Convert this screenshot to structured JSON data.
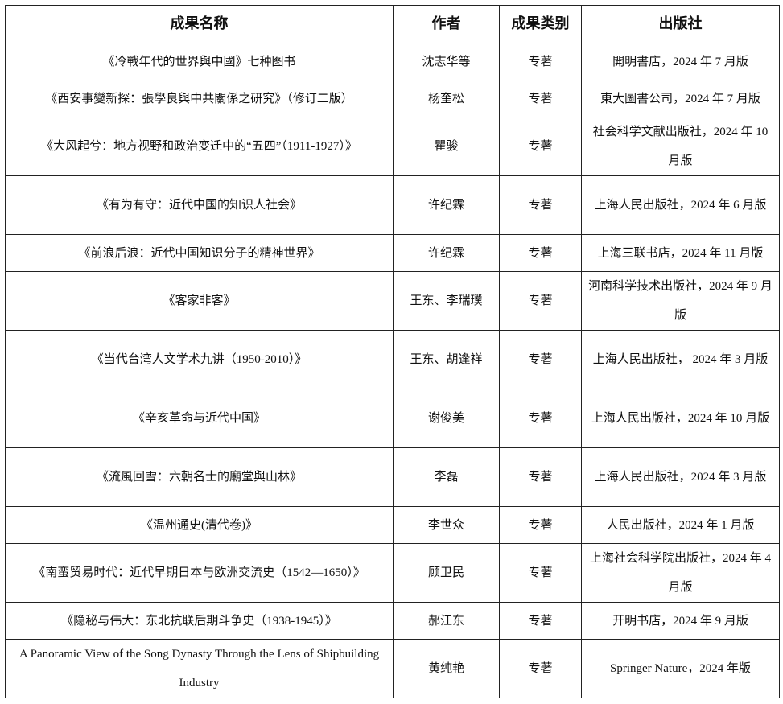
{
  "table": {
    "headers": [
      "成果名称",
      "作者",
      "成果类别",
      "出版社"
    ],
    "rows": [
      {
        "title": "《冷戰年代的世界與中國》七种图书",
        "author": "沈志华等",
        "category": "专著",
        "publisher": "開明書店，2024 年 7 月版"
      },
      {
        "title": "《西安事變新探：張學良與中共關係之研究》（修订二版）",
        "author": "杨奎松",
        "category": "专著",
        "publisher": "東大圖書公司，2024 年 7 月版"
      },
      {
        "title": "《大风起兮：地方视野和政治变迁中的“五四”（1911-1927）》",
        "author": "瞿骏",
        "category": "专著",
        "publisher": "社会科学文献出版社，2024 年 10 月版"
      },
      {
        "title": "《有为有守：近代中国的知识人社会》",
        "author": "许纪霖",
        "category": "专著",
        "publisher": "上海人民出版社，2024 年 6 月版"
      },
      {
        "title": "《前浪后浪：近代中国知识分子的精神世界》",
        "author": "许纪霖",
        "category": "专著",
        "publisher": "上海三联书店，2024 年 11 月版"
      },
      {
        "title": "《客家非客》",
        "author": "王东、李瑞璞",
        "category": "专著",
        "publisher": "河南科学技术出版社，2024 年 9 月版"
      },
      {
        "title": "《当代台湾人文学术九讲（1950-2010）》",
        "author": "王东、胡逢祥",
        "category": "专著",
        "publisher": "上海人民出版社， 2024 年 3 月版"
      },
      {
        "title": "《辛亥革命与近代中国》",
        "author": "谢俊美",
        "category": "专著",
        "publisher": "上海人民出版社，2024 年 10 月版"
      },
      {
        "title": "《流風回雪：六朝名士的廟堂與山林》",
        "author": "李磊",
        "category": "专著",
        "publisher": "上海人民出版社，2024 年 3 月版"
      },
      {
        "title": "《温州通史(清代卷)》",
        "author": "李世众",
        "category": "专著",
        "publisher": "人民出版社，2024 年 1 月版"
      },
      {
        "title": "《南蛮贸易时代：近代早期日本与欧洲交流史（1542—1650）》",
        "author": "顾卫民",
        "category": "专著",
        "publisher": "上海社会科学院出版社，2024 年 4 月版"
      },
      {
        "title": "《隐秘与伟大：东北抗联后期斗争史（1938-1945）》",
        "author": "郝江东",
        "category": "专著",
        "publisher": "开明书店，2024 年 9 月版"
      },
      {
        "title": "A Panoramic View of the Song Dynasty Through the Lens of Shipbuilding Industry",
        "author": "黄纯艳",
        "category": "专著",
        "publisher": "Springer Nature，2024 年版"
      }
    ]
  }
}
